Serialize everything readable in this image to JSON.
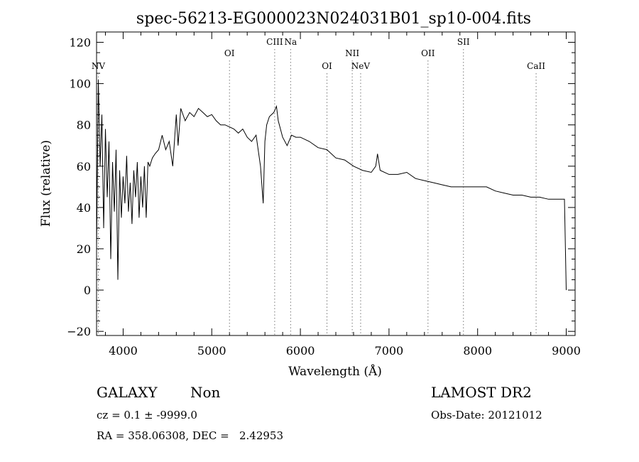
{
  "chart_data": {
    "type": "line",
    "title": "spec-56213-EG000023N024031B01_sp10-004.fits",
    "xlabel": "Wavelength (Å)",
    "ylabel": "Flux (relative)",
    "xlim": [
      3700,
      9100
    ],
    "ylim": [
      -22,
      125
    ],
    "xticks": [
      4000,
      5000,
      6000,
      7000,
      8000,
      9000
    ],
    "yticks": [
      -20,
      0,
      20,
      40,
      60,
      80,
      100,
      120
    ],
    "grid": false,
    "series": [
      {
        "x": [
          3700,
          3720,
          3740,
          3760,
          3780,
          3800,
          3820,
          3840,
          3860,
          3880,
          3900,
          3920,
          3940,
          3960,
          3980,
          4000,
          4020,
          4040,
          4060,
          4080,
          4100,
          4120,
          4140,
          4160,
          4180,
          4200,
          4220,
          4240,
          4260,
          4280,
          4300,
          4330,
          4360,
          4400,
          4440,
          4480,
          4520,
          4560,
          4600,
          4620,
          4650,
          4700,
          4750,
          4800,
          4850,
          4900,
          4950,
          5000,
          5050,
          5100,
          5150,
          5200,
          5250,
          5300,
          5350,
          5400,
          5450,
          5500,
          5550,
          5580,
          5600,
          5620,
          5650,
          5700,
          5730,
          5750,
          5800,
          5850,
          5900,
          5950,
          6000,
          6100,
          6200,
          6300,
          6400,
          6500,
          6600,
          6700,
          6800,
          6850,
          6870,
          6900,
          7000,
          7100,
          7200,
          7300,
          7400,
          7500,
          7600,
          7700,
          7800,
          7900,
          8000,
          8100,
          8200,
          8300,
          8400,
          8500,
          8600,
          8700,
          8800,
          8900,
          8950,
          8980,
          9000
        ],
        "y": [
          20,
          102,
          60,
          85,
          30,
          78,
          45,
          72,
          15,
          62,
          38,
          68,
          5,
          58,
          35,
          55,
          42,
          65,
          38,
          52,
          32,
          58,
          45,
          62,
          35,
          55,
          40,
          60,
          35,
          62,
          60,
          64,
          66,
          68,
          75,
          68,
          72,
          60,
          85,
          70,
          88,
          82,
          86,
          84,
          88,
          86,
          84,
          85,
          82,
          80,
          80,
          79,
          78,
          76,
          78,
          74,
          72,
          75,
          60,
          42,
          72,
          80,
          84,
          86,
          89,
          82,
          74,
          70,
          75,
          74,
          74,
          72,
          69,
          68,
          64,
          63,
          60,
          58,
          57,
          60,
          66,
          58,
          56,
          56,
          57,
          54,
          53,
          52,
          51,
          50,
          50,
          50,
          50,
          50,
          48,
          47,
          46,
          46,
          45,
          45,
          44,
          44,
          44,
          44,
          0
        ]
      }
    ],
    "lines": [
      {
        "label": "NV",
        "x": 3720,
        "row": 3
      },
      {
        "label": "OI",
        "x": 5200,
        "row": 2
      },
      {
        "label": "CIII",
        "x": 5710,
        "row": 1
      },
      {
        "label": "Na",
        "x": 5890,
        "row": 1
      },
      {
        "label": "OI",
        "x": 6300,
        "row": 3
      },
      {
        "label": "NII",
        "x": 6585,
        "row": 2
      },
      {
        "label": "NeV",
        "x": 6680,
        "row": 3
      },
      {
        "label": "OII",
        "x": 7440,
        "row": 2
      },
      {
        "label": "SII",
        "x": 7840,
        "row": 1
      },
      {
        "label": "CaII",
        "x": 8660,
        "row": 3
      }
    ]
  },
  "info": {
    "object_type": "GALAXY",
    "subclass": "Non",
    "redshift": "cz = 0.1 ± -9999.0",
    "coords": "RA = 358.06308, DEC =   2.42953",
    "survey": "LAMOST DR2",
    "obs_date": "Obs-Date: 20121012"
  }
}
